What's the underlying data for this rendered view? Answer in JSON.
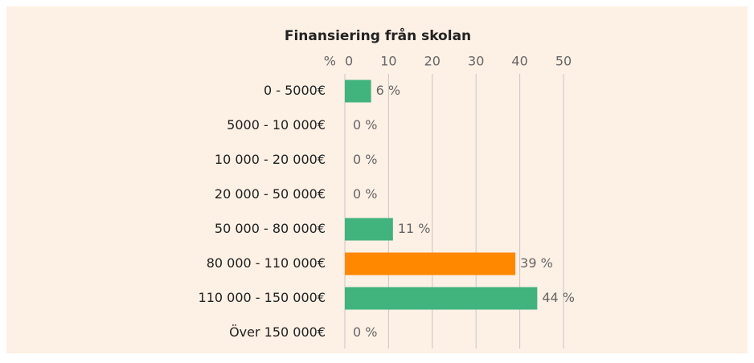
{
  "chart_data": {
    "type": "hbar",
    "title": "Finansiering från skolan",
    "xlabel": "%",
    "categories": [
      "0 - 5000€",
      "5000 - 10 000€",
      "10 000 - 20 000€",
      "20 000 - 50 000€",
      "50 000 - 80 000€",
      "80 000 - 110 000€",
      "110 000 - 150 000€",
      "Över 150 000€"
    ],
    "values": [
      6,
      0,
      0,
      0,
      11,
      39,
      44,
      0
    ],
    "value_labels": [
      "6 %",
      "0 %",
      "0 %",
      "0 %",
      "11 %",
      "39 %",
      "44 %",
      "0 %"
    ],
    "colors": [
      "#41b37c",
      "#41b37c",
      "#41b37c",
      "#41b37c",
      "#41b37c",
      "#ff8800",
      "#41b37c",
      "#41b37c"
    ],
    "xlim": [
      0,
      50
    ],
    "xticks": [
      0,
      10,
      20,
      30,
      40,
      50
    ],
    "grid": true
  }
}
